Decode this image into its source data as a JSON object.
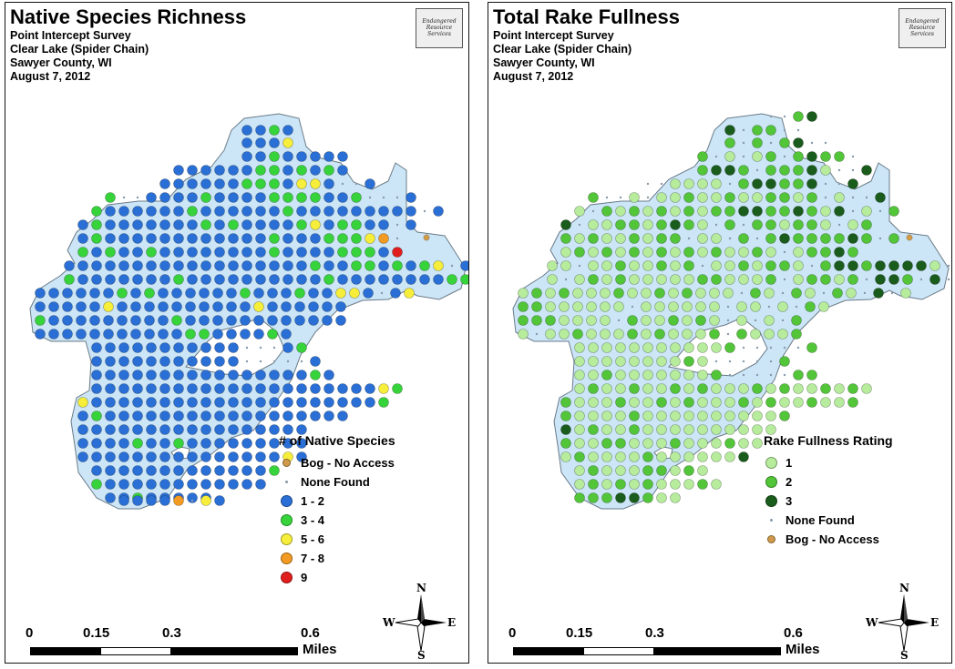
{
  "left_map": {
    "title": "Native Species Richness",
    "subtitle_lines": [
      "Point Intercept Survey",
      "Clear Lake (Spider Chain)",
      "Sawyer County, WI",
      "August 7, 2012"
    ],
    "legend": {
      "title": "# of Native Species",
      "items": [
        {
          "label": "Bog - No Access",
          "symbol": "small-dot",
          "color": "#d09a4a"
        },
        {
          "label": "None Found",
          "symbol": "x",
          "color": "#8899aa"
        },
        {
          "label": "1 - 2",
          "symbol": "dot",
          "color": "#2a6fd6"
        },
        {
          "label": "3 - 4",
          "symbol": "dot",
          "color": "#36d43a"
        },
        {
          "label": "5 - 6",
          "symbol": "dot",
          "color": "#f6ee3a"
        },
        {
          "label": "7 - 8",
          "symbol": "dot",
          "color": "#f29a22"
        },
        {
          "label": "9",
          "symbol": "dot",
          "color": "#e01e1e"
        }
      ]
    }
  },
  "right_map": {
    "title": "Total Rake Fullness",
    "subtitle_lines": [
      "Point Intercept Survey",
      "Clear Lake (Spider Chain)",
      "Sawyer County, WI",
      "August 7, 2012"
    ],
    "legend": {
      "title": "Rake Fullness Rating",
      "items": [
        {
          "label": "1",
          "symbol": "dot",
          "color": "#b6ec9c"
        },
        {
          "label": "2",
          "symbol": "dot",
          "color": "#52c638"
        },
        {
          "label": "3",
          "symbol": "dot",
          "color": "#1a5c1c"
        },
        {
          "label": "None Found",
          "symbol": "x",
          "color": "#8899aa"
        },
        {
          "label": "Bog - No Access",
          "symbol": "small-dot",
          "color": "#d09a4a"
        }
      ]
    }
  },
  "scale_bar": {
    "ticks": [
      "0",
      "0.15",
      "0.3",
      "0.6"
    ],
    "unit": "Miles"
  },
  "compass": {
    "n": "N",
    "s": "S",
    "e": "E",
    "w": "W"
  },
  "logo": {
    "icon": "endangered-resource-services-logo",
    "text": "Endangered Resource Services"
  },
  "colors": {
    "lake_fill": "#cce6f7",
    "lake_outline": "#6a7b88",
    "grid_point": "#8899aa"
  }
}
